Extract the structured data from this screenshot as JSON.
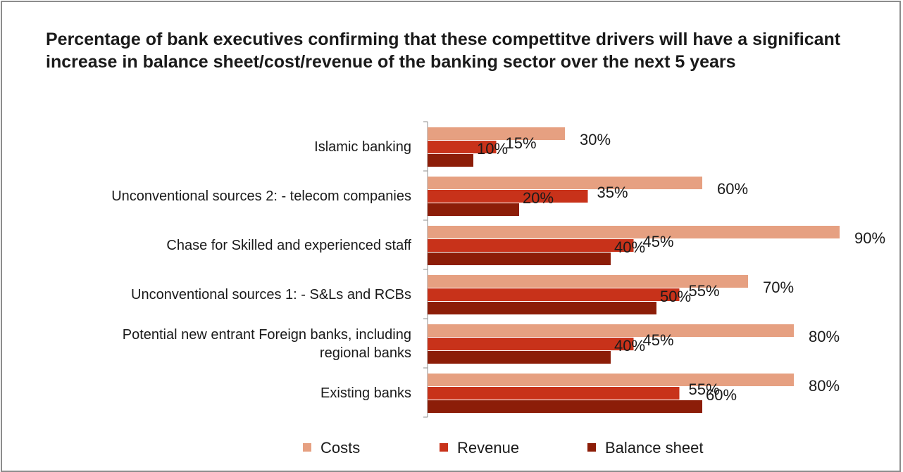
{
  "chart_data": {
    "type": "bar",
    "orientation": "horizontal",
    "title": "Percentage of bank executives confirming that these compettitve drivers will have a significant increase in balance sheet/cost/revenue of  the banking sector over the next 5 years",
    "categories": [
      [
        "Islamic banking"
      ],
      [
        "Unconventional sources 2: - telecom companies"
      ],
      [
        "Chase for Skilled and experienced staff "
      ],
      [
        "Unconventional sources 1: - S&Ls and RCBs"
      ],
      [
        "Potential new entrant Foreign banks, including",
        "regional banks"
      ],
      [
        "Existing banks"
      ]
    ],
    "series": [
      {
        "name": "Costs",
        "color": "#E6A081",
        "values": [
          30,
          60,
          90,
          70,
          80,
          80
        ]
      },
      {
        "name": "Revenue",
        "color": "#C8321A",
        "values": [
          15,
          35,
          45,
          55,
          45,
          55
        ]
      },
      {
        "name": "Balance sheet",
        "color": "#8C1D08",
        "values": [
          10,
          20,
          40,
          50,
          40,
          60
        ]
      }
    ],
    "value_suffix": "%",
    "xlim": [
      0,
      90
    ],
    "grid": false,
    "legend": "bottom"
  }
}
